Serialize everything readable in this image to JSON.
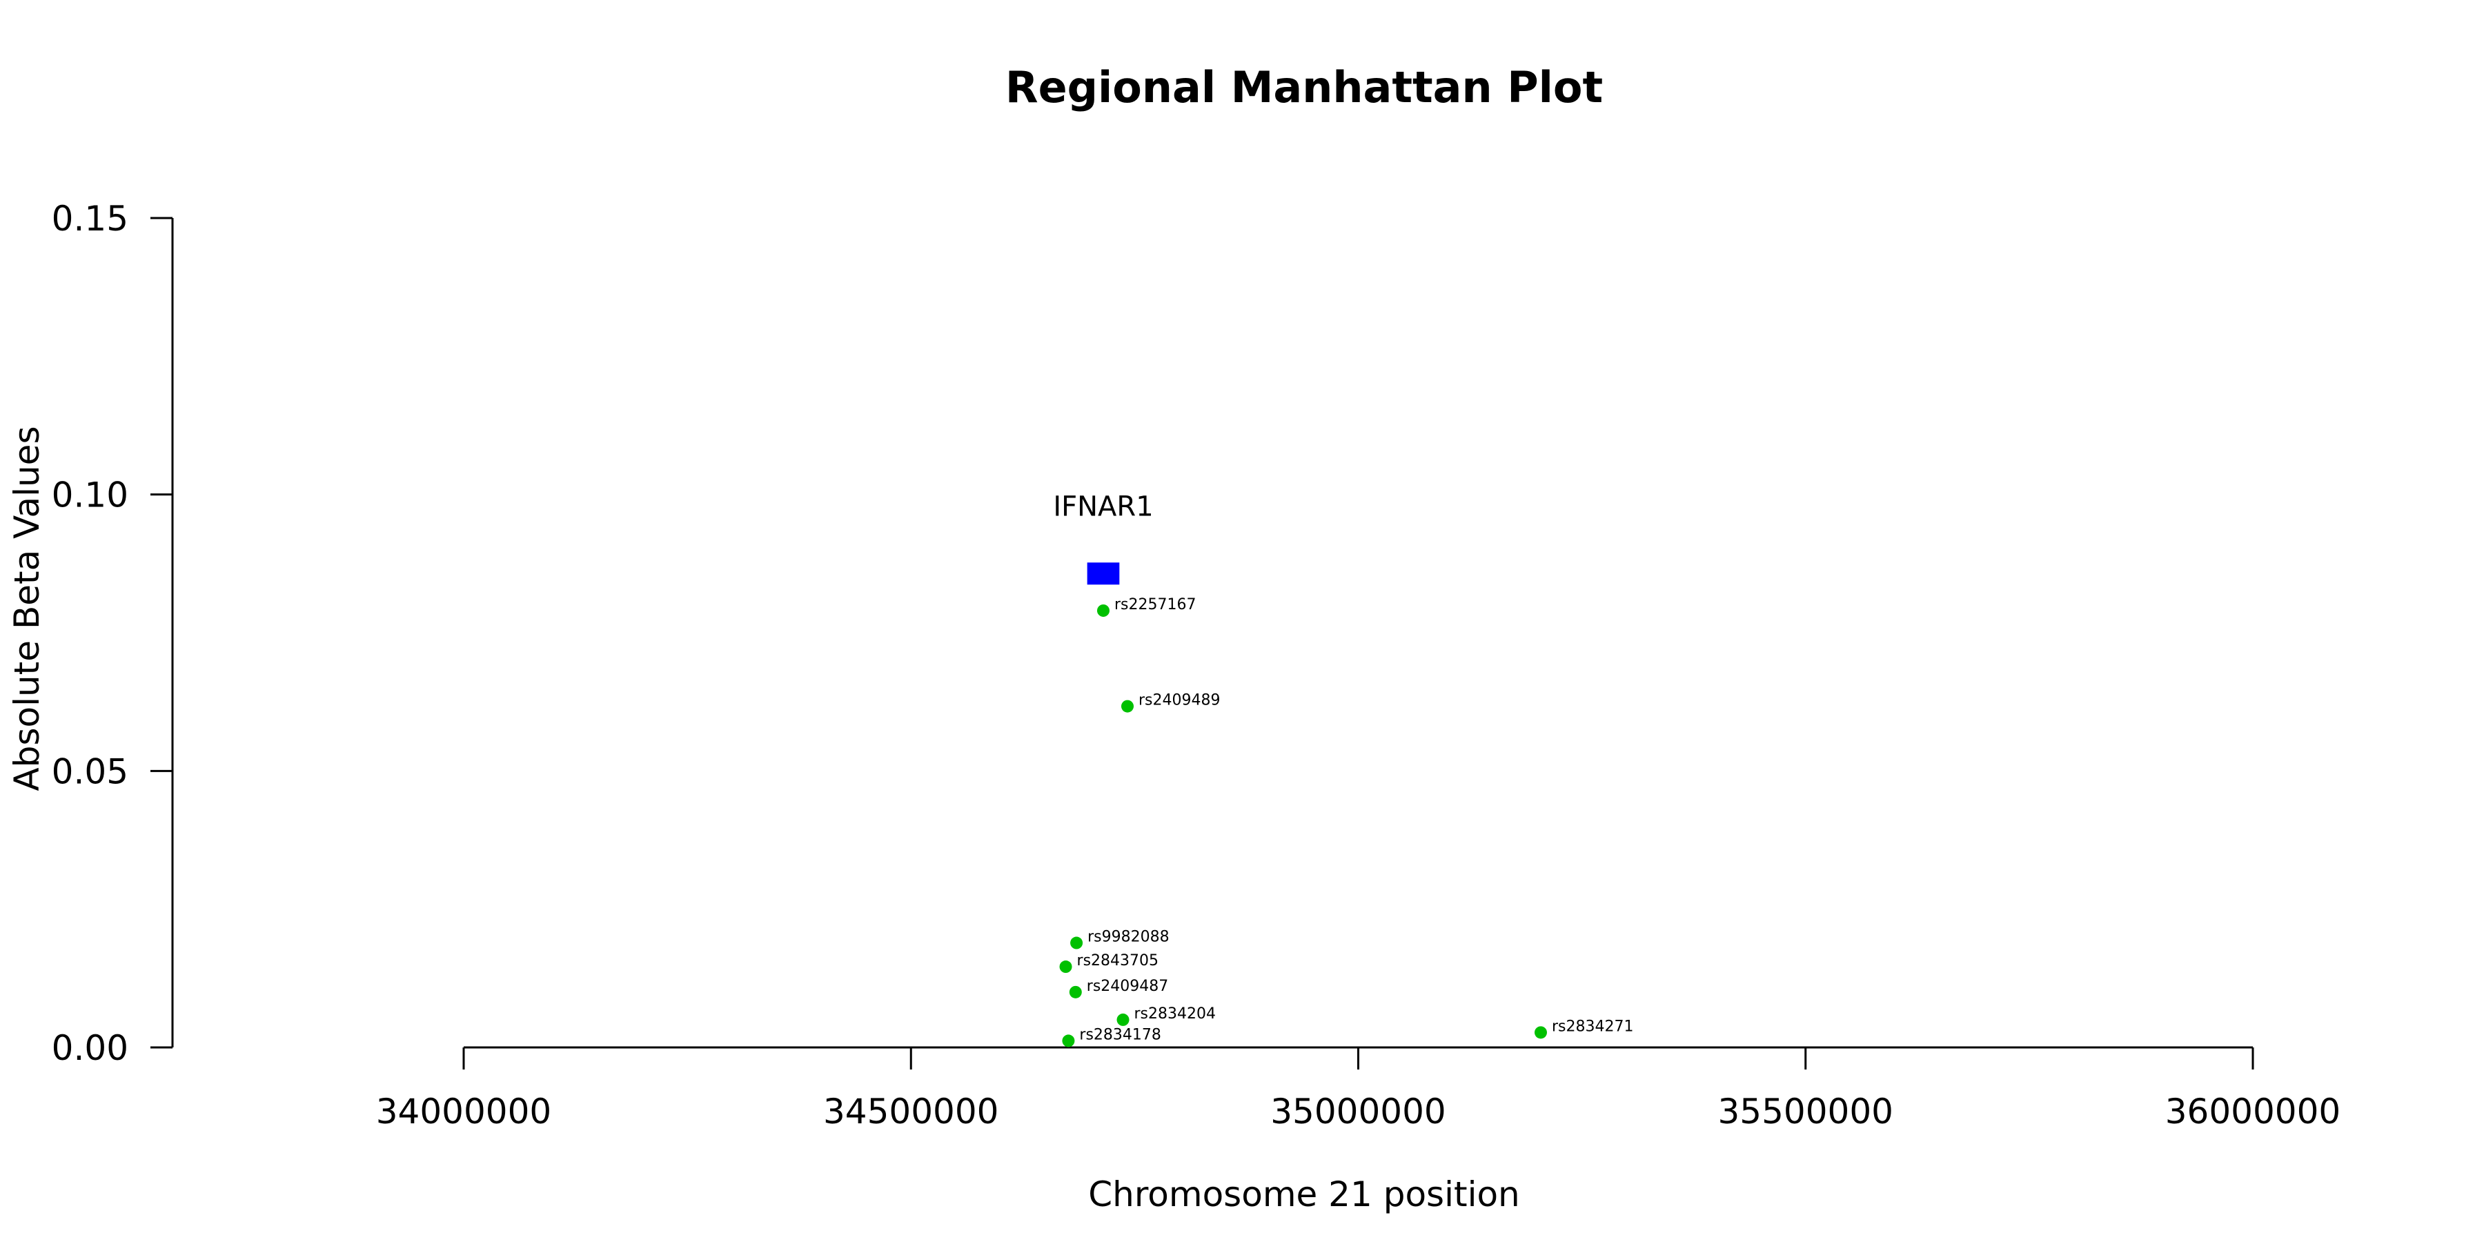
{
  "chart_data": {
    "type": "scatter",
    "title": "Regional Manhattan Plot",
    "xlabel": "Chromosome 21 position",
    "ylabel": "Absolute Beta Values",
    "xlim": [
      33650000,
      36450000
    ],
    "ylim": [
      0,
      0.15
    ],
    "xticks": [
      34000000,
      34500000,
      35000000,
      35500000,
      36000000
    ],
    "xtick_labels": [
      "34000000",
      "34500000",
      "35000000",
      "35500000",
      "36000000"
    ],
    "yticks": [
      0,
      0.05,
      0.1,
      0.15
    ],
    "ytick_labels": [
      "0.00",
      "0.05",
      "0.10",
      "0.15"
    ],
    "grid": false,
    "point_color": "#00c000",
    "gene_color": "#0000ff",
    "genes": [
      {
        "name": "IFNAR1",
        "start": 34697000,
        "end": 34733000,
        "y": 0.0857
      }
    ],
    "points": [
      {
        "label": "rs2257167",
        "x": 34715000,
        "y": 0.079
      },
      {
        "label": "rs2409489",
        "x": 34742000,
        "y": 0.0617
      },
      {
        "label": "rs9982088",
        "x": 34685000,
        "y": 0.0189
      },
      {
        "label": "rs2843705",
        "x": 34673000,
        "y": 0.0146
      },
      {
        "label": "rs2409487",
        "x": 34684000,
        "y": 0.01
      },
      {
        "label": "rs2834204",
        "x": 34737000,
        "y": 0.005
      },
      {
        "label": "rs2834178",
        "x": 34676000,
        "y": 0.0012
      },
      {
        "label": "rs2834271",
        "x": 35204000,
        "y": 0.0027
      }
    ]
  }
}
